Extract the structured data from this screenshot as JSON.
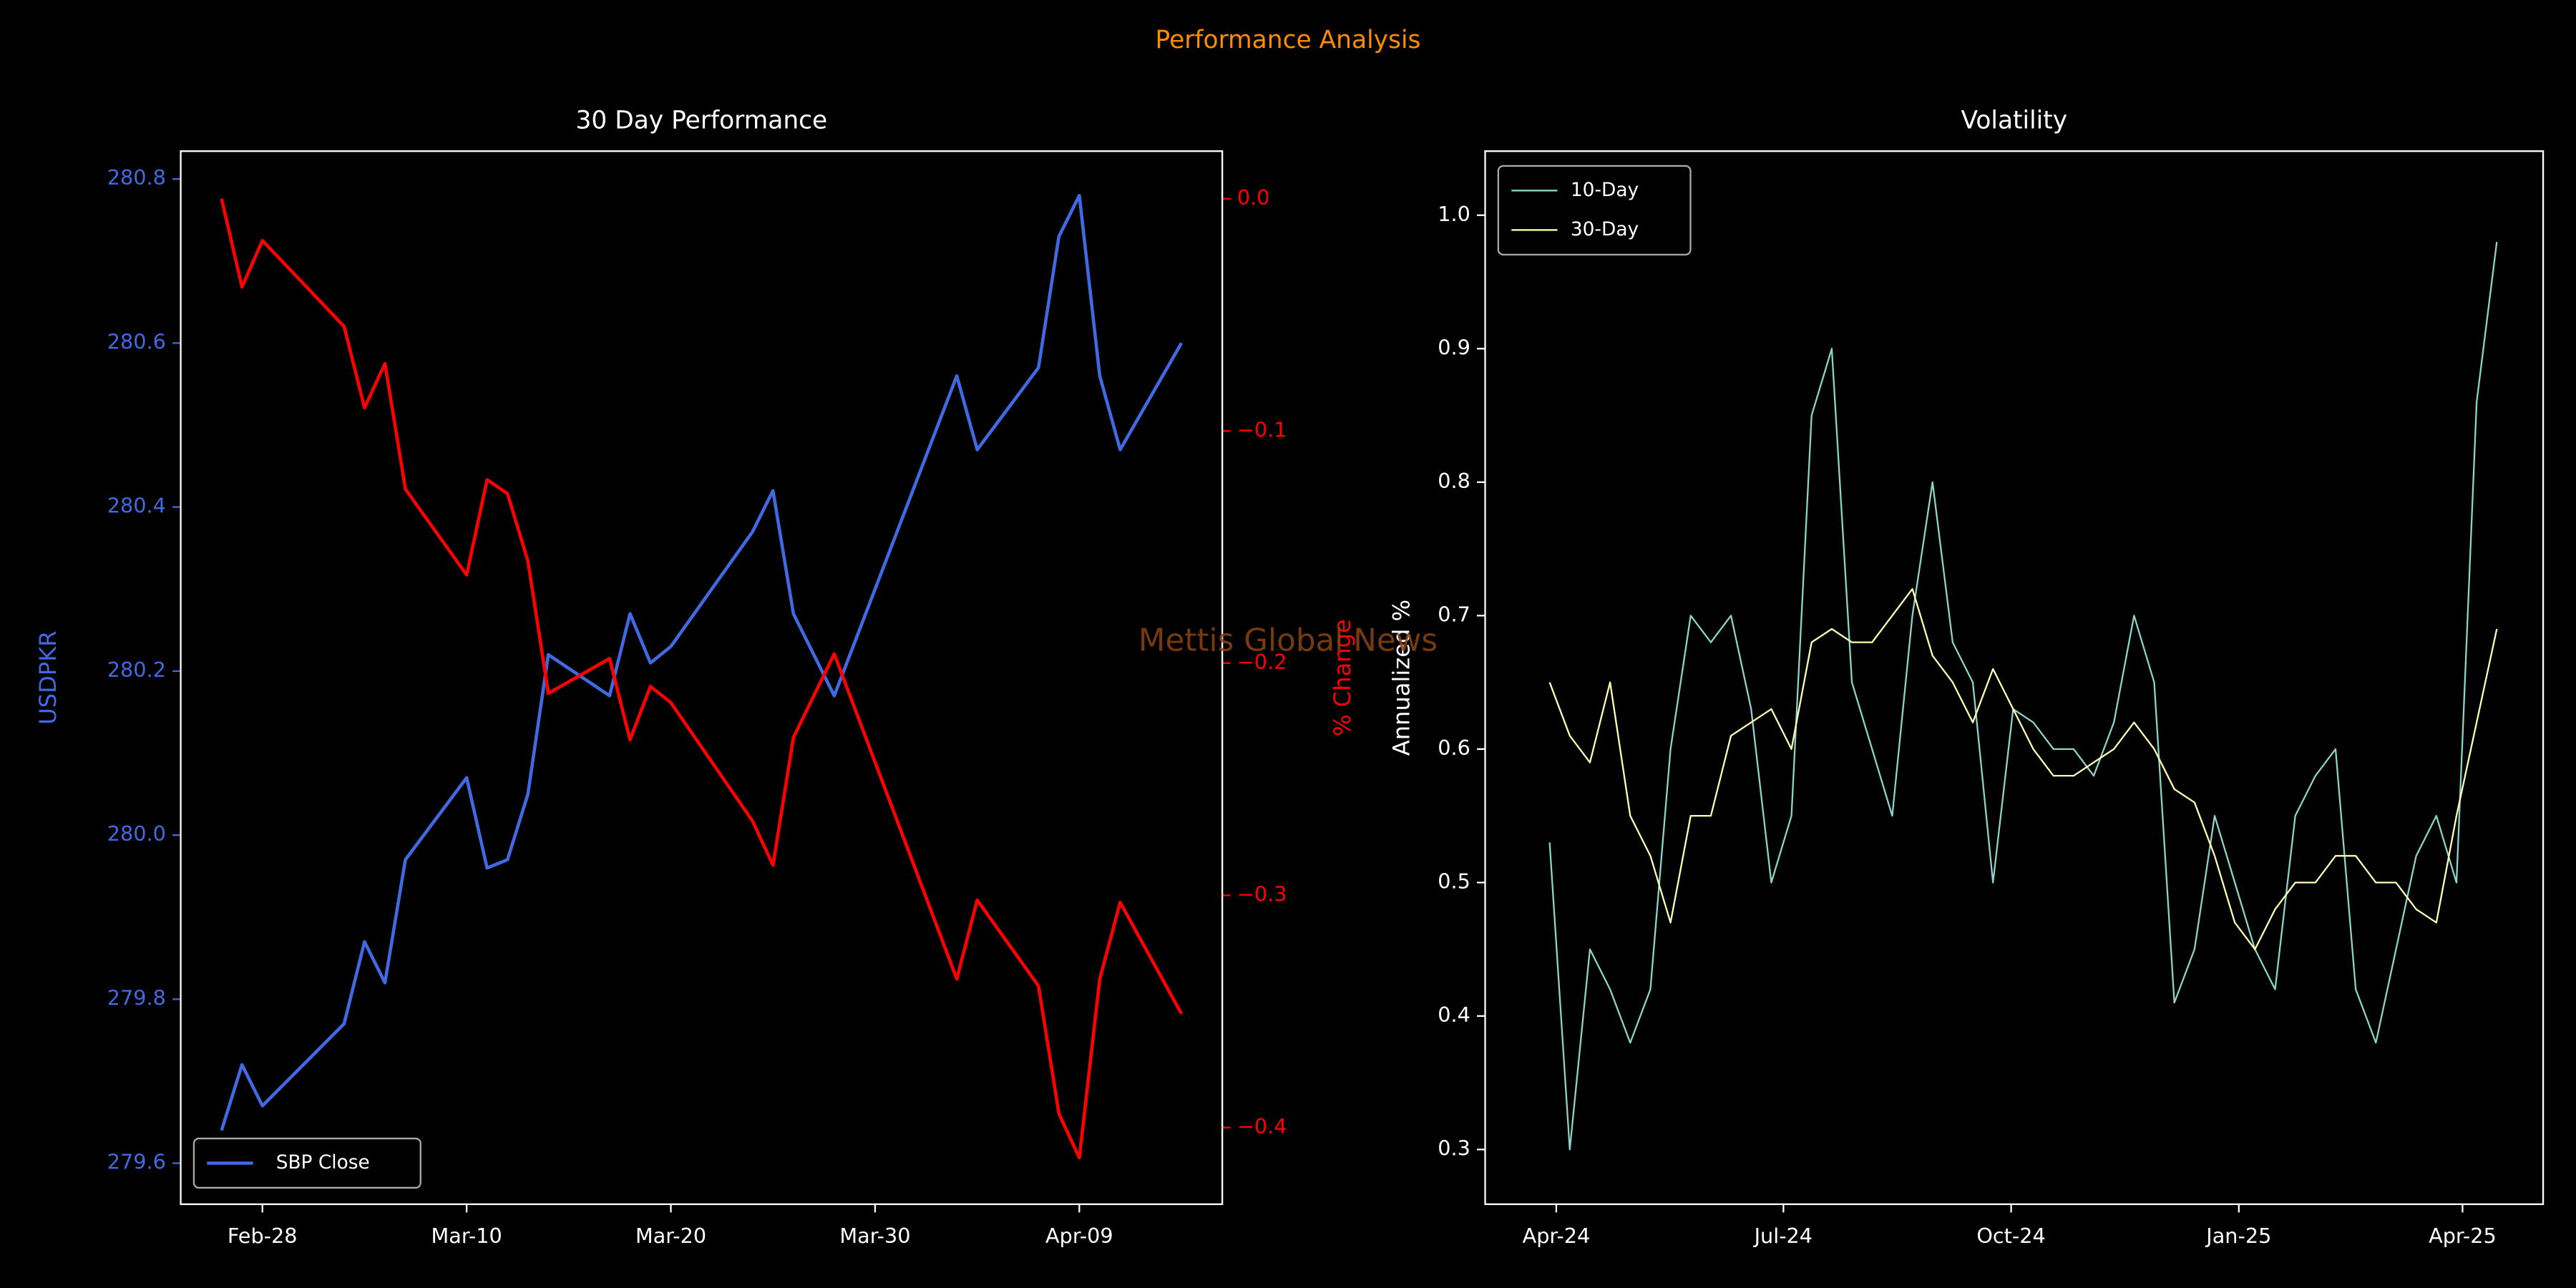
{
  "title": "Performance Analysis",
  "watermark": "Mettis Global News",
  "chart_data": [
    {
      "type": "line",
      "title": "30 Day Performance",
      "ylabel": "USDPKR",
      "y2label": "% Change",
      "x": [
        "Feb-26",
        "Feb-27",
        "Feb-28",
        "Mar-04",
        "Mar-05",
        "Mar-06",
        "Mar-07",
        "Mar-10",
        "Mar-11",
        "Mar-12",
        "Mar-13",
        "Mar-14",
        "Mar-17",
        "Mar-18",
        "Mar-19",
        "Mar-20",
        "Mar-24",
        "Mar-25",
        "Mar-26",
        "Mar-28",
        "Apr-03",
        "Apr-04",
        "Apr-07",
        "Apr-08",
        "Apr-09",
        "Apr-10",
        "Apr-11",
        "Apr-14"
      ],
      "series": [
        {
          "name": "SBP Close",
          "color": "#4169e1",
          "values": [
            279.64,
            279.72,
            279.67,
            279.77,
            279.87,
            279.82,
            279.97,
            280.07,
            279.96,
            279.97,
            280.05,
            280.22,
            280.17,
            280.27,
            280.21,
            280.23,
            280.37,
            280.42,
            280.27,
            280.17,
            280.56,
            280.47,
            280.57,
            280.73,
            280.78,
            280.56,
            280.47,
            280.6
          ]
        },
        {
          "color": "#ff0000",
          "axis": "y2",
          "values": [
            0.0,
            -0.038,
            -0.018,
            -0.055,
            -0.09,
            -0.071,
            -0.125,
            -0.162,
            -0.121,
            -0.127,
            -0.156,
            -0.213,
            -0.198,
            -0.233,
            -0.21,
            -0.217,
            -0.268,
            -0.287,
            -0.232,
            -0.196,
            -0.336,
            -0.302,
            -0.339,
            -0.394,
            -0.413,
            -0.336,
            -0.303,
            -0.351
          ]
        }
      ],
      "xlim": [
        "Feb-24",
        "Apr-16"
      ],
      "xticks": [
        "Feb-28",
        "Mar-10",
        "Mar-20",
        "Mar-30",
        "Apr-09"
      ],
      "ylim": [
        279.55,
        280.834
      ],
      "yticks": [
        279.6,
        279.8,
        {
          "value": 280,
          "label": "280.0"
        },
        280.2,
        280.4,
        280.6,
        280.8
      ],
      "y2lim": [
        -0.433,
        0.0205
      ],
      "y2ticks": [
        {
          "value": 0,
          "label": "0.0"
        },
        {
          "value": -0.1,
          "label": "−0.1"
        },
        {
          "value": -0.2,
          "label": "−0.2"
        },
        {
          "value": -0.3,
          "label": "−0.3"
        },
        {
          "value": -0.4,
          "label": "−0.4"
        }
      ],
      "legend": "lower left"
    },
    {
      "type": "line",
      "title": "Volatility",
      "ylabel": "Annualized %",
      "x": [
        null,
        null,
        null,
        null,
        null,
        null,
        null,
        null,
        null,
        null,
        null,
        null,
        null,
        null,
        null,
        null,
        null,
        null,
        null,
        null,
        null,
        null,
        null,
        null,
        null,
        null,
        null,
        null,
        null,
        null,
        null,
        null,
        null,
        null,
        null,
        null,
        null,
        null,
        null,
        null,
        null,
        null,
        null,
        null,
        null,
        null,
        null,
        null
      ],
      "series": [
        {
          "name": "10-Day",
          "color": "#8dd3c7",
          "values": [
            0.53,
            0.3,
            0.45,
            0.42,
            0.38,
            0.42,
            0.6,
            0.7,
            0.68,
            0.7,
            0.63,
            0.5,
            0.55,
            0.85,
            0.9,
            0.65,
            0.6,
            0.55,
            0.7,
            0.8,
            0.68,
            0.65,
            0.5,
            0.63,
            0.62,
            0.6,
            0.6,
            0.58,
            0.62,
            0.7,
            0.65,
            0.41,
            0.45,
            0.55,
            0.5,
            0.45,
            0.42,
            0.55,
            0.58,
            0.6,
            0.42,
            0.38,
            0.45,
            0.52,
            0.55,
            0.5,
            0.86,
            0.98
          ]
        },
        {
          "name": "30-Day",
          "color": "#ffffb3",
          "values": [
            0.65,
            0.61,
            0.59,
            0.65,
            0.55,
            0.52,
            0.47,
            0.55,
            0.55,
            0.61,
            0.62,
            0.63,
            0.6,
            0.68,
            0.69,
            0.68,
            0.68,
            0.7,
            0.72,
            0.67,
            0.65,
            0.62,
            0.66,
            0.63,
            0.6,
            0.58,
            0.58,
            0.59,
            0.6,
            0.62,
            0.6,
            0.57,
            0.56,
            0.52,
            0.47,
            0.45,
            0.48,
            0.5,
            0.5,
            0.52,
            0.52,
            0.5,
            0.5,
            0.48,
            0.47,
            0.55,
            0.62,
            0.69
          ]
        }
      ],
      "xlim": [
        -3.2,
        49.3
      ],
      "xticks": [
        {
          "value": 0.33,
          "label": "Apr-24"
        },
        {
          "value": 11.6,
          "label": "Jul-24"
        },
        {
          "value": 22.9,
          "label": "Oct-24"
        },
        {
          "value": 34.2,
          "label": "Jan-25"
        },
        {
          "value": 45.3,
          "label": "Apr-25"
        }
      ],
      "ylim": [
        0.259,
        1.048
      ],
      "yticks": [
        0.3,
        0.4,
        0.5,
        0.6,
        0.7,
        0.8,
        0.9,
        {
          "value": 1,
          "label": "1.0"
        }
      ],
      "legend": "upper left"
    }
  ]
}
